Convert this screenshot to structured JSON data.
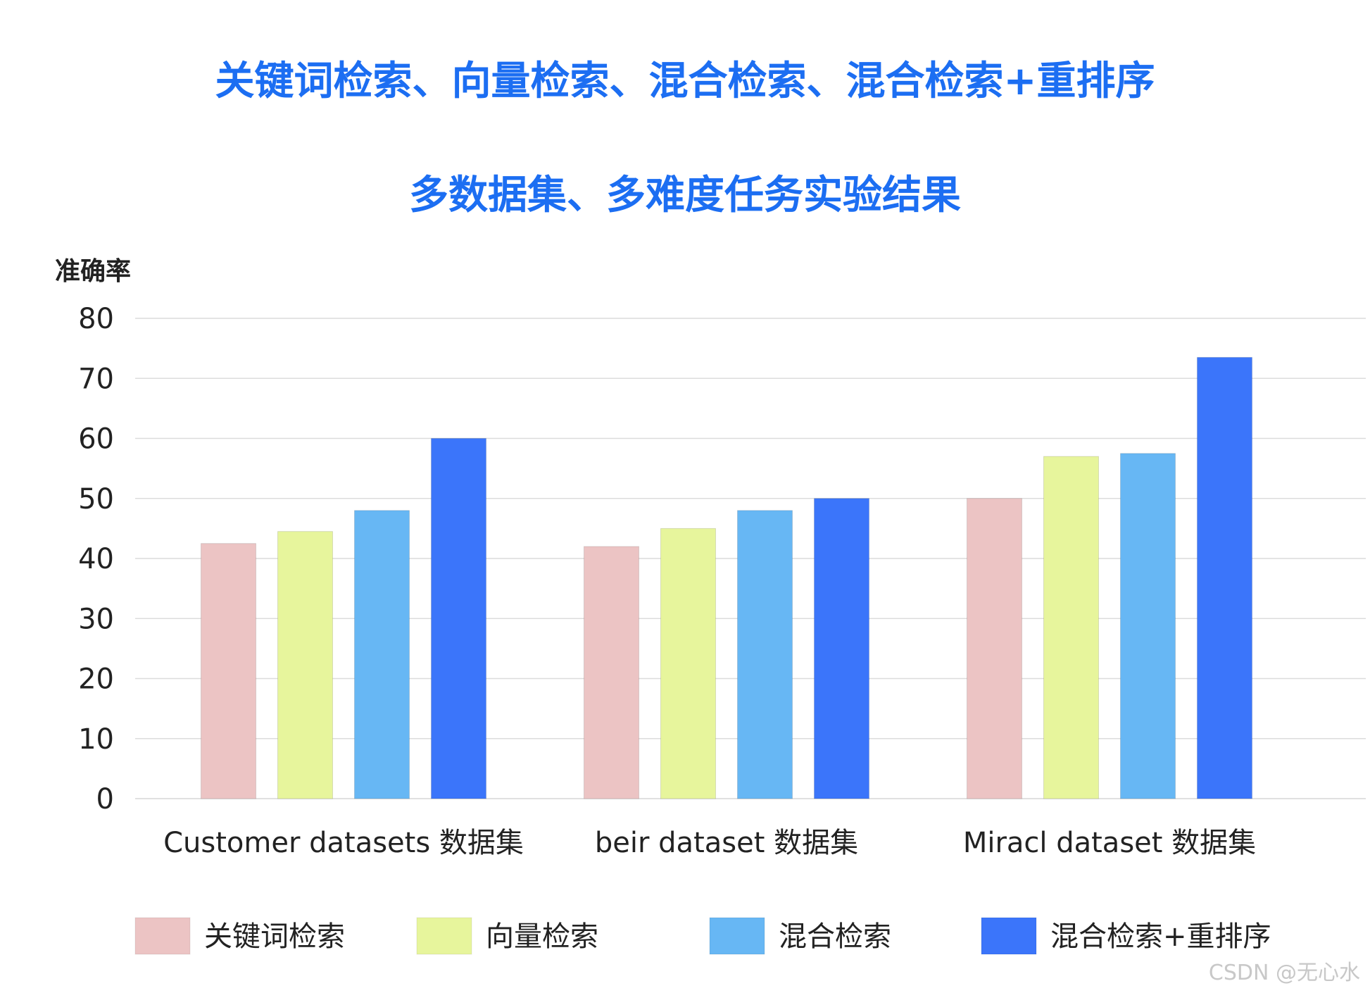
{
  "chart_data": {
    "type": "bar",
    "title": "关键词检索、向量检索、混合检索、混合检索+重排序",
    "subtitle": "多数据集、多难度任务实验结果",
    "ylabel": "准确率",
    "xlabel": "",
    "ylim": [
      0,
      80
    ],
    "yticks": [
      0,
      10,
      20,
      30,
      40,
      50,
      60,
      70,
      80
    ],
    "grid": true,
    "legend_position": "bottom",
    "categories": [
      "Customer datasets 数据集",
      "beir dataset 数据集",
      "Miracl dataset 数据集"
    ],
    "series": [
      {
        "name": "关键词检索",
        "color": "#ecc4c4",
        "values": [
          42.5,
          42,
          50
        ]
      },
      {
        "name": "向量检索",
        "color": "#e7f59c",
        "values": [
          44.5,
          45,
          57
        ]
      },
      {
        "name": "混合检索",
        "color": "#67b7f4",
        "values": [
          48,
          48,
          57.5
        ]
      },
      {
        "name": "混合检索+重排序",
        "color": "#3b75fa",
        "values": [
          60,
          50,
          73.5
        ]
      }
    ]
  },
  "watermark": "CSDN @无心水"
}
